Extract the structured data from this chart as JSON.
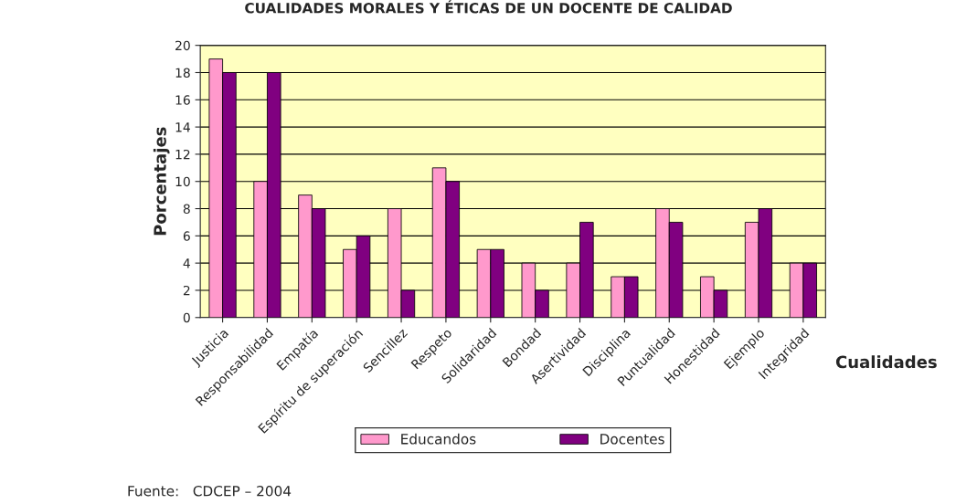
{
  "chart_data": {
    "type": "bar",
    "title": "CUALIDADES MORALES Y ÉTICAS DE UN DOCENTE DE CALIDAD",
    "xlabel": "Cualidades",
    "ylabel": "Porcentajes",
    "categories": [
      "Justicia",
      "Responsabilidad",
      "Empatía",
      "Espíritu de superación",
      "Sencillez",
      "Respeto",
      "Solidaridad",
      "Bondad",
      "Asertividad",
      "Disciplina",
      "Puntualidad",
      "Honestidad",
      "Ejemplo",
      "Integridad"
    ],
    "series": [
      {
        "name": "Educandos",
        "color": "#ff99cc",
        "values": [
          19,
          10,
          9,
          5,
          8,
          11,
          5,
          4,
          4,
          3,
          8,
          3,
          7,
          4
        ]
      },
      {
        "name": "Docentes",
        "color": "#800080",
        "values": [
          18,
          18,
          8,
          6,
          2,
          10,
          5,
          2,
          7,
          3,
          7,
          2,
          8,
          4
        ]
      }
    ],
    "ylim": [
      0,
      20
    ],
    "yticks": [
      0,
      2,
      4,
      6,
      8,
      10,
      12,
      14,
      16,
      18,
      20
    ],
    "grid": "y",
    "legend": "bottom",
    "annotations": [
      "Fuente:   CDCEP – 2004"
    ]
  }
}
